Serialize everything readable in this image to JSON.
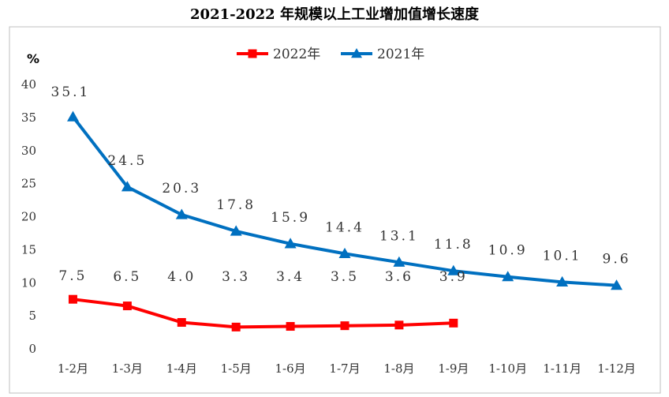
{
  "chart_data": {
    "type": "line",
    "title": "2021-2022 年规模以上工业增加值增长速度",
    "ylabel": "%",
    "xlabel": "",
    "categories": [
      "1-2月",
      "1-3月",
      "1-4月",
      "1-5月",
      "1-6月",
      "1-7月",
      "1-8月",
      "1-9月",
      "1-10月",
      "1-11月",
      "1-12月"
    ],
    "ylim": [
      0,
      40
    ],
    "yticks": [
      0,
      5,
      10,
      15,
      20,
      25,
      30,
      35,
      40
    ],
    "grid": false,
    "legend_position": "top-center",
    "series": [
      {
        "name": "2022年",
        "color": "#ff0000",
        "marker": "square",
        "values": [
          7.5,
          6.5,
          4.0,
          3.3,
          3.4,
          3.5,
          3.6,
          3.9,
          null,
          null,
          null
        ],
        "labels": [
          "7.5",
          "6.5",
          "4.0",
          "3.3",
          "3.4",
          "3.5",
          "3.6",
          "3.9",
          null,
          null,
          null
        ]
      },
      {
        "name": "2021年",
        "color": "#0070c0",
        "marker": "triangle",
        "values": [
          35.1,
          24.5,
          20.3,
          17.8,
          15.9,
          14.4,
          13.1,
          11.8,
          10.9,
          10.1,
          9.6
        ],
        "labels": [
          "35.1",
          "24.5",
          "20.3",
          "17.8",
          "15.9",
          "14.4",
          "13.1",
          "11.8",
          "10.9",
          "10.1",
          "9.6"
        ]
      }
    ]
  }
}
